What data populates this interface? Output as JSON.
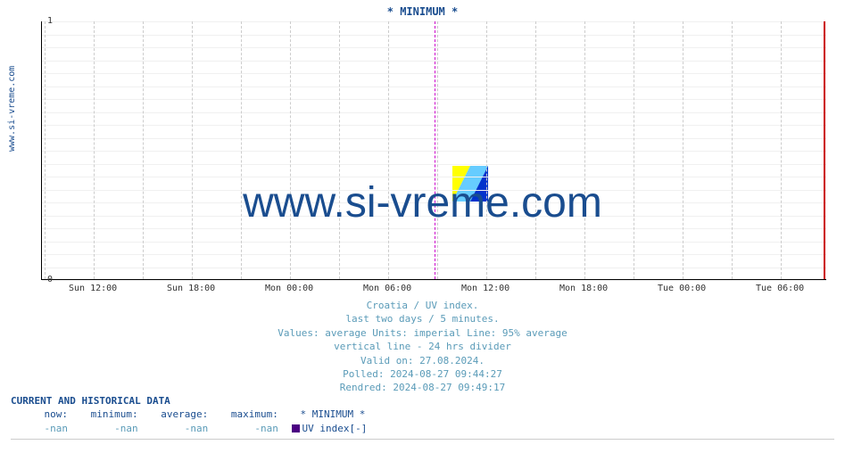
{
  "chart": {
    "type": "line",
    "title": "* MINIMUM *",
    "y_axis_label": "www.si-vreme.com",
    "watermark": "www.si-vreme.com",
    "ylim": [
      0,
      1
    ],
    "yticks": [
      0,
      1
    ],
    "xtick_labels": [
      "Sun 12:00",
      "Sun 18:00",
      "Mon 00:00",
      "Mon 06:00",
      "Mon 12:00",
      "Mon 18:00",
      "Tue 00:00",
      "Tue 06:00"
    ],
    "xtick_positions_pct": [
      6.6,
      19.1,
      31.6,
      44.1,
      56.6,
      69.1,
      81.6,
      94.1
    ],
    "grid_h_count": 21,
    "grid_v_positions_pct": [
      0.35,
      6.6,
      12.85,
      19.1,
      25.35,
      31.6,
      37.85,
      44.1,
      50.35,
      56.6,
      62.85,
      69.1,
      75.35,
      81.6,
      87.85,
      94.1
    ],
    "divider_24_pct": 50.0,
    "red_marker_pct": 99.5,
    "colors": {
      "title": "#1a4d8f",
      "caption": "#5a9bb8",
      "grid": "#f0f0f0",
      "grid_v": "#cccccc",
      "divider": "#cc00cc",
      "marker": "#cc0000",
      "swatch": "#4b0082",
      "background": "#ffffff"
    },
    "icon": {
      "left_color": "#ffff00",
      "mid_color": "#66ccff",
      "right_color": "#0033cc"
    }
  },
  "caption": {
    "line1": "Croatia / UV index.",
    "line2": "last two days / 5 minutes.",
    "line3": "Values: average  Units: imperial  Line: 95% average",
    "line4": "vertical line - 24 hrs  divider",
    "line5": "Valid on: 27.08.2024.",
    "line6": "Polled: 2024-08-27 09:44:27",
    "line7": "Rendred: 2024-08-27 09:49:17"
  },
  "data_table": {
    "header": "CURRENT AND HISTORICAL DATA",
    "columns": [
      "now:",
      "minimum:",
      "average:",
      "maximum:"
    ],
    "series_label": "* MINIMUM *",
    "values": [
      "-nan",
      "-nan",
      "-nan",
      "-nan"
    ],
    "legend_name": "UV index[-]"
  }
}
